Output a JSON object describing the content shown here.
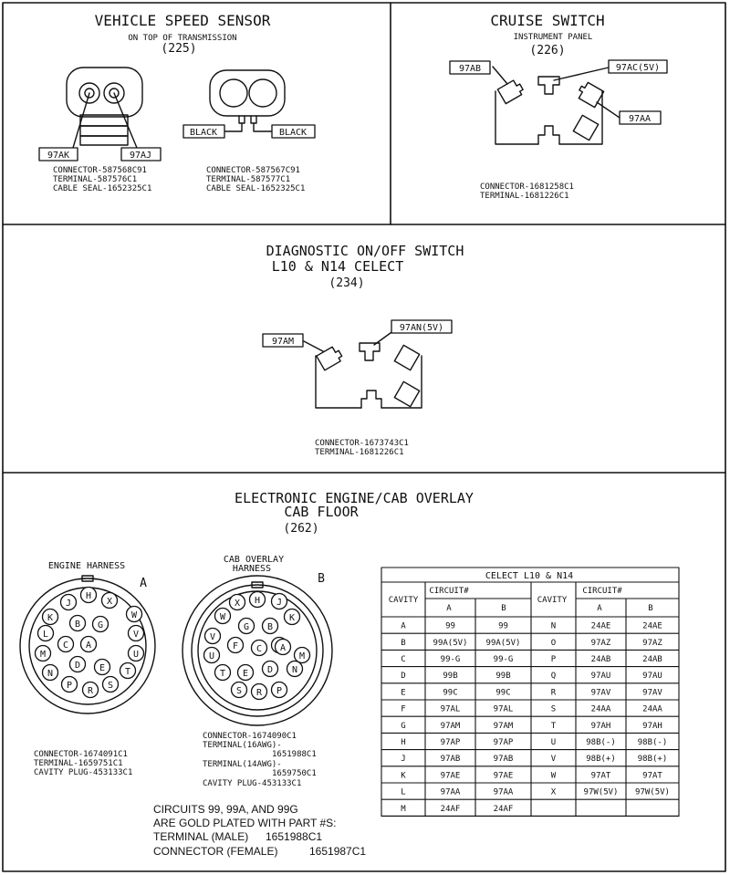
{
  "vss": {
    "title": "VEHICLE SPEED SENSOR",
    "subtitle": "ON TOP OF TRANSMISSION",
    "ref": "(225)",
    "left": {
      "pin1": "97AK",
      "pin2": "97AJ",
      "connector": "CONNECTOR-587568C91",
      "terminal": "TERMINAL-587576C1",
      "seal": "CABLE SEAL-1652325C1"
    },
    "right": {
      "wire1": "BLACK",
      "wire2": "BLACK",
      "connector": "CONNECTOR-587567C91",
      "terminal": "TERMINAL-587577C1",
      "seal": "CABLE SEAL-1652325C1"
    }
  },
  "cruise": {
    "title": "CRUISE SWITCH",
    "subtitle": "INSTRUMENT PANEL",
    "ref": "(226)",
    "pin_left": "97AB",
    "pin_top": "97AC(5V)",
    "pin_right": "97AA",
    "connector": "CONNECTOR-1681258C1",
    "terminal": "TERMINAL-1681226C1"
  },
  "diag": {
    "title": "DIAGNOSTIC ON/OFF SWITCH",
    "subtitle": "L10 & N14 CELECT",
    "ref": "(234)",
    "pin_left": "97AM",
    "pin_top": "97AN(5V)",
    "connector": "CONNECTOR-1673743C1",
    "terminal": "TERMINAL-1681226C1"
  },
  "overlay": {
    "title": "ELECTRONIC ENGINE/CAB OVERLAY",
    "subtitle": "CAB FLOOR",
    "ref": "(262)",
    "engine": {
      "label": "ENGINE HARNESS",
      "letter": "A",
      "connector": "CONNECTOR-1674091C1",
      "terminal": "TERMINAL-1659751C1",
      "plug": "CAVITY PLUG-453133C1"
    },
    "cab": {
      "label_line1": "CAB OVERLAY",
      "label_line2": "HARNESS",
      "letter": "B",
      "connector": "CONNECTOR-1674090C1",
      "terminal1": "TERMINAL(16AWG)-",
      "terminal1_part": "1651988C1",
      "terminal2": "TERMINAL(14AWG)-",
      "terminal2_part": "1659750C1",
      "plug": "CAVITY PLUG-453133C1"
    },
    "engine_pins": [
      "H",
      "X",
      "J",
      "W",
      "K",
      "B",
      "G",
      "L",
      "V",
      "M",
      "C",
      "A",
      "U",
      "N",
      "D",
      "E",
      "T",
      "P",
      "R",
      "S"
    ],
    "cab_pins": [
      "X",
      "H",
      "J",
      "W",
      "G",
      "B",
      "K",
      "V",
      "F",
      "L",
      "U",
      "C",
      "A",
      "M",
      "T",
      "E",
      "D",
      "N",
      "S",
      "R",
      "P"
    ],
    "note": {
      "line1": "CIRCUITS 99, 99A, AND 99G",
      "line2": "ARE GOLD PLATED WITH PART #S:",
      "line3_label": "TERMINAL (MALE)",
      "line3_part": "1651988C1",
      "line4_label": "CONNECTOR (FEMALE)",
      "line4_part": "1651987C1"
    }
  },
  "table": {
    "title": "CELECT L10 & N14",
    "cavity_header": "CAVITY",
    "circuit_header": "CIRCUIT#",
    "col_a": "A",
    "col_b": "B",
    "rows_left": [
      [
        "A",
        "99",
        "99"
      ],
      [
        "B",
        "99A(5V)",
        "99A(5V)"
      ],
      [
        "C",
        "99-G",
        "99-G"
      ],
      [
        "D",
        "99B",
        "99B"
      ],
      [
        "E",
        "99C",
        "99C"
      ],
      [
        "F",
        "97AL",
        "97AL"
      ],
      [
        "G",
        "97AM",
        "97AM"
      ],
      [
        "H",
        "97AP",
        "97AP"
      ],
      [
        "J",
        "97AB",
        "97AB"
      ],
      [
        "K",
        "97AE",
        "97AE"
      ],
      [
        "L",
        "97AA",
        "97AA"
      ],
      [
        "M",
        "24AF",
        "24AF"
      ]
    ],
    "rows_right": [
      [
        "N",
        "24AE",
        "24AE"
      ],
      [
        "O",
        "97AZ",
        "97AZ"
      ],
      [
        "P",
        "24AB",
        "24AB"
      ],
      [
        "Q",
        "97AU",
        "97AU"
      ],
      [
        "R",
        "97AV",
        "97AV"
      ],
      [
        "S",
        "24AA",
        "24AA"
      ],
      [
        "T",
        "97AH",
        "97AH"
      ],
      [
        "U",
        "98B(-)",
        "98B(-)"
      ],
      [
        "V",
        "98B(+)",
        "98B(+)"
      ],
      [
        "W",
        "97AT",
        "97AT"
      ],
      [
        "X",
        "97W(5V)",
        "97W(5V)"
      ],
      [
        "",
        "",
        ""
      ]
    ]
  }
}
